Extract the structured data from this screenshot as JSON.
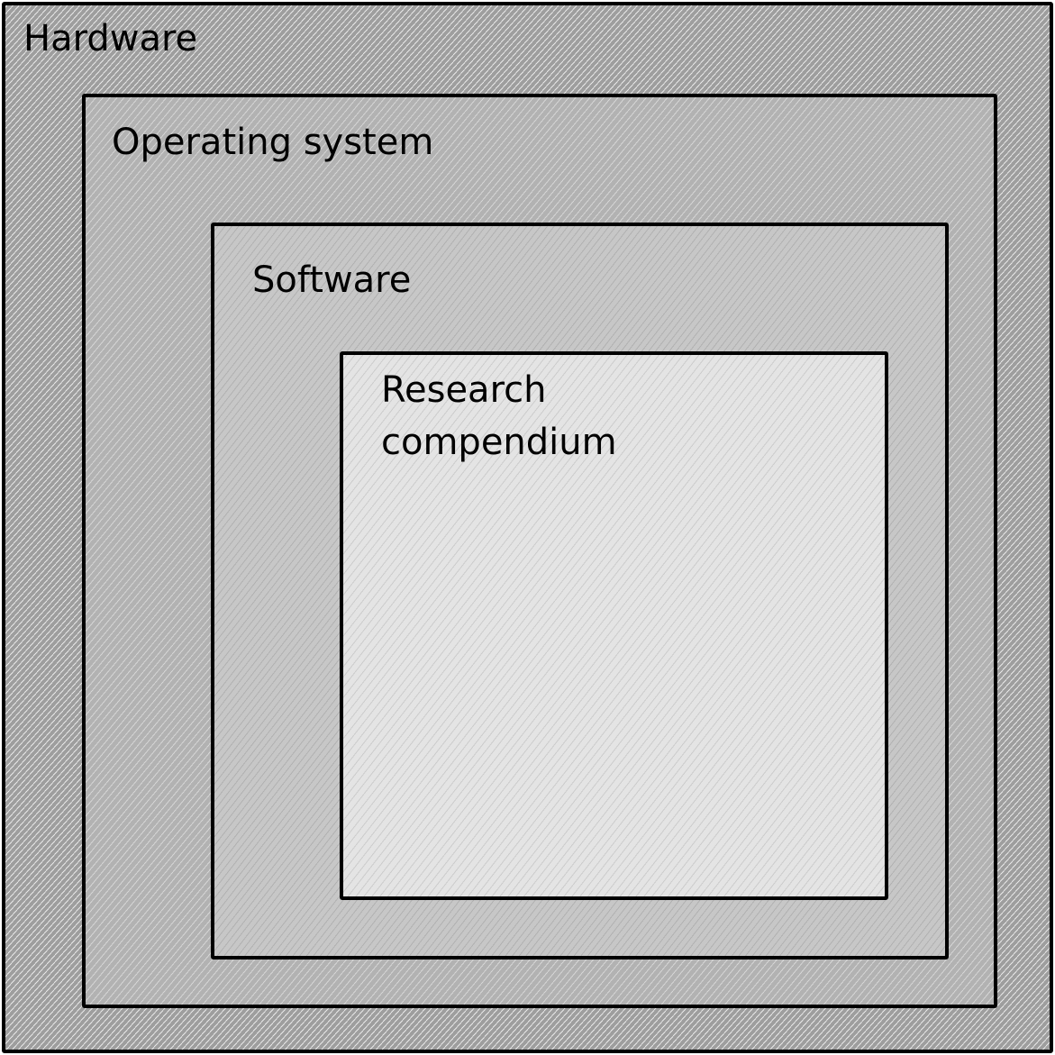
{
  "layers": {
    "hardware": {
      "label": "Hardware"
    },
    "operating_system": {
      "label": "Operating system"
    },
    "software": {
      "label": "Software"
    },
    "research_compendium": {
      "label_line1": "Research",
      "label_line2": "compendium"
    }
  }
}
